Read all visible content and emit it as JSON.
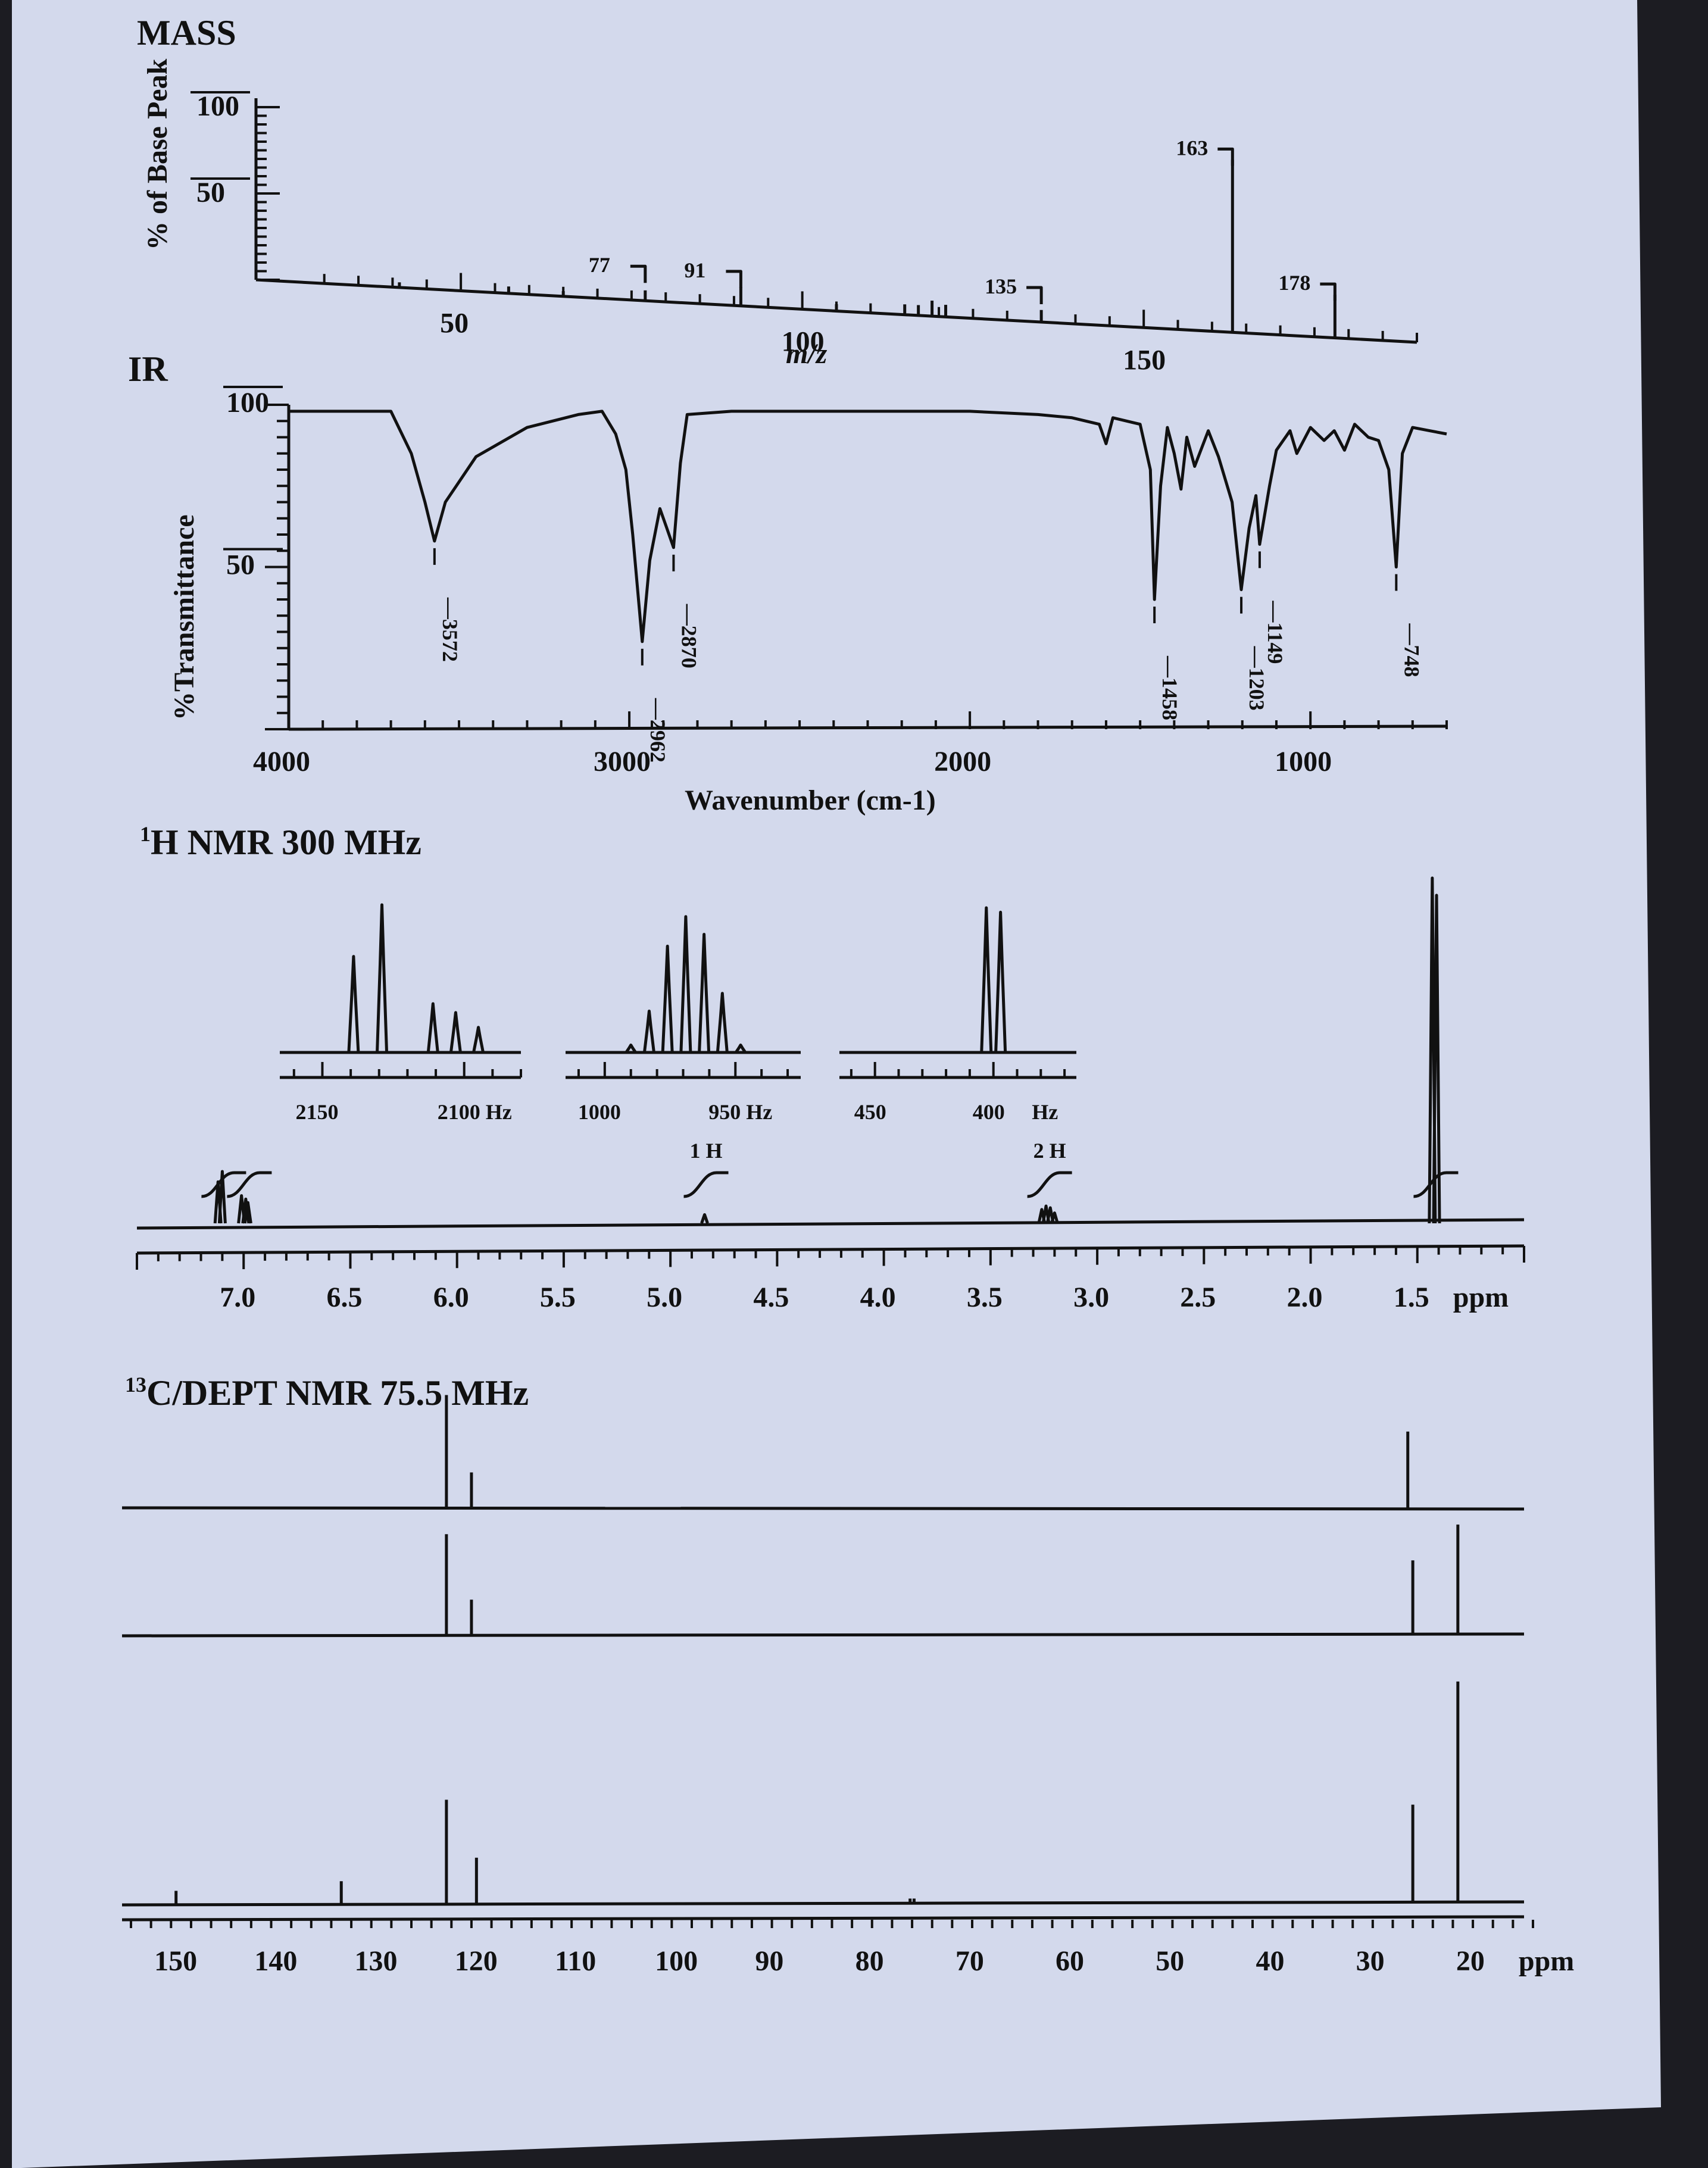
{
  "colors": {
    "paper": "#d3d9ec",
    "ink": "#111111",
    "shadow": "#1c1c22"
  },
  "chart_data": [
    {
      "panel": "mass",
      "type": "bar",
      "title": "MASS",
      "xlabel": "m/z",
      "ylabel": "% of Base Peak",
      "xlim": [
        20,
        190
      ],
      "ylim": [
        0,
        110
      ],
      "xticks": [
        "50",
        "100",
        "150"
      ],
      "yticks": [
        "50",
        "100"
      ],
      "peaks": [
        {
          "mz": 77,
          "value": 6,
          "label": "77"
        },
        {
          "mz": 91,
          "value": 11,
          "label": "91"
        },
        {
          "mz": 41,
          "value": 3
        },
        {
          "mz": 57,
          "value": 4
        },
        {
          "mz": 65,
          "value": 3
        },
        {
          "mz": 105,
          "value": 4
        },
        {
          "mz": 115,
          "value": 6
        },
        {
          "mz": 117,
          "value": 6
        },
        {
          "mz": 119,
          "value": 9
        },
        {
          "mz": 121,
          "value": 7
        },
        {
          "mz": 135,
          "value": 7,
          "label": "135"
        },
        {
          "mz": 163,
          "value": 100,
          "label": "163"
        },
        {
          "mz": 178,
          "value": 25,
          "label": "178"
        }
      ]
    },
    {
      "panel": "ir",
      "type": "line",
      "title": "IR",
      "xlabel": "Wavenumber (cm-1)",
      "ylabel": "%Transmittance",
      "xlim": [
        4000,
        600
      ],
      "ylim": [
        0,
        100
      ],
      "xticks": [
        "4000",
        "3000",
        "2000",
        "1000"
      ],
      "yticks": [
        "50",
        "100"
      ],
      "peak_labels": [
        "3572",
        "2962",
        "2870",
        "1458",
        "1203",
        "1149",
        "748"
      ],
      "points": [
        [
          4000,
          98
        ],
        [
          3700,
          98
        ],
        [
          3640,
          85
        ],
        [
          3600,
          70
        ],
        [
          3572,
          58
        ],
        [
          3540,
          70
        ],
        [
          3450,
          84
        ],
        [
          3300,
          93
        ],
        [
          3150,
          97
        ],
        [
          3080,
          98
        ],
        [
          3040,
          91
        ],
        [
          3010,
          80
        ],
        [
          2990,
          60
        ],
        [
          2962,
          27
        ],
        [
          2940,
          52
        ],
        [
          2910,
          68
        ],
        [
          2890,
          62
        ],
        [
          2870,
          56
        ],
        [
          2850,
          82
        ],
        [
          2830,
          97
        ],
        [
          2700,
          98
        ],
        [
          2400,
          98
        ],
        [
          2000,
          98
        ],
        [
          1800,
          97
        ],
        [
          1700,
          96
        ],
        [
          1620,
          94
        ],
        [
          1600,
          88
        ],
        [
          1580,
          96
        ],
        [
          1500,
          94
        ],
        [
          1470,
          80
        ],
        [
          1458,
          40
        ],
        [
          1440,
          75
        ],
        [
          1420,
          93
        ],
        [
          1400,
          85
        ],
        [
          1380,
          74
        ],
        [
          1363,
          90
        ],
        [
          1340,
          81
        ],
        [
          1300,
          92
        ],
        [
          1270,
          84
        ],
        [
          1230,
          70
        ],
        [
          1203,
          43
        ],
        [
          1180,
          62
        ],
        [
          1160,
          72
        ],
        [
          1149,
          57
        ],
        [
          1120,
          75
        ],
        [
          1100,
          86
        ],
        [
          1060,
          92
        ],
        [
          1040,
          85
        ],
        [
          1000,
          93
        ],
        [
          960,
          89
        ],
        [
          930,
          92
        ],
        [
          900,
          86
        ],
        [
          870,
          94
        ],
        [
          830,
          90
        ],
        [
          800,
          89
        ],
        [
          770,
          80
        ],
        [
          748,
          50
        ],
        [
          730,
          85
        ],
        [
          700,
          93
        ],
        [
          650,
          92
        ],
        [
          600,
          91
        ]
      ]
    },
    {
      "panel": "h_nmr",
      "type": "line",
      "title": "1H NMR 300 MHz",
      "title_sup": "1",
      "title_text": "H NMR 300 MHz",
      "xlabel": "ppm",
      "xlim": [
        7.5,
        1.0
      ],
      "xticks": [
        "7.0",
        "6.5",
        "6.0",
        "5.5",
        "5.0",
        "4.5",
        "4.0",
        "3.5",
        "3.0",
        "2.5",
        "2.0",
        "1.5"
      ],
      "signals": [
        {
          "ppm": 7.12,
          "height": 0.12
        },
        {
          "ppm": 7.1,
          "height": 0.15
        },
        {
          "ppm": 7.01,
          "height": 0.08
        },
        {
          "ppm": 6.99,
          "height": 0.07
        },
        {
          "ppm": 6.98,
          "height": 0.06
        },
        {
          "ppm": 4.84,
          "height": 0.025
        },
        {
          "ppm": 3.26,
          "height": 0.04
        },
        {
          "ppm": 3.24,
          "height": 0.05
        },
        {
          "ppm": 3.22,
          "height": 0.045
        },
        {
          "ppm": 3.2,
          "height": 0.03
        },
        {
          "ppm": 1.43,
          "height": 1.0
        },
        {
          "ppm": 1.41,
          "height": 0.95
        }
      ],
      "integrals": [
        {
          "ppm": 7.1,
          "label": ""
        },
        {
          "ppm": 6.98,
          "label": ""
        },
        {
          "ppm": 4.84,
          "label": "1 H"
        },
        {
          "ppm": 3.23,
          "label": "2 H"
        },
        {
          "ppm": 1.42,
          "label": ""
        }
      ],
      "insets": [
        {
          "xticks": [
            "2150",
            "2100 Hz"
          ],
          "peaks_hz": [
            2139,
            2129,
            2111,
            2103,
            2095
          ],
          "heights": [
            0.65,
            1.0,
            0.33,
            0.27,
            0.17
          ]
        },
        {
          "xticks": [
            "1000",
            "950 Hz"
          ],
          "peaks_hz": [
            990,
            983,
            976,
            969,
            962,
            955,
            948
          ],
          "heights": [
            0.05,
            0.28,
            0.72,
            0.92,
            0.8,
            0.4,
            0.05
          ]
        },
        {
          "xticks": [
            "450",
            "400",
            "Hz"
          ],
          "peaks_hz": [
            403,
            397
          ],
          "heights": [
            0.98,
            0.95
          ]
        }
      ]
    },
    {
      "panel": "c_nmr",
      "type": "line",
      "title": "13C/DEPT NMR 75.5 MHz",
      "title_sup": "13",
      "title_text": "C/DEPT NMR 75.5 MHz",
      "xlabel": "ppm",
      "xlim": [
        155,
        15
      ],
      "xticks": [
        "150",
        "140",
        "130",
        "120",
        "110",
        "100",
        "90",
        "80",
        "70",
        "60",
        "50",
        "40",
        "30",
        "20"
      ],
      "traces": [
        {
          "name": "",
          "peaks": [
            {
              "ppm": 123.5,
              "height": 0.95
            },
            {
              "ppm": 121,
              "height": 0.3
            },
            {
              "ppm": 27.5,
              "height": 0.65
            }
          ]
        },
        {
          "name": "",
          "peaks": [
            {
              "ppm": 123.5,
              "height": 0.85
            },
            {
              "ppm": 121,
              "height": 0.3
            },
            {
              "ppm": 27,
              "height": 0.62
            },
            {
              "ppm": 22.5,
              "height": 0.92
            }
          ]
        },
        {
          "name": "",
          "peaks": [
            {
              "ppm": 150.5,
              "height": 0.06
            },
            {
              "ppm": 134,
              "height": 0.1
            },
            {
              "ppm": 123.5,
              "height": 0.45
            },
            {
              "ppm": 120.5,
              "height": 0.2
            },
            {
              "ppm": 77.2,
              "height": 0.02
            },
            {
              "ppm": 76.8,
              "height": 0.02
            },
            {
              "ppm": 27,
              "height": 0.42
            },
            {
              "ppm": 22.5,
              "height": 0.95
            }
          ]
        }
      ]
    }
  ]
}
